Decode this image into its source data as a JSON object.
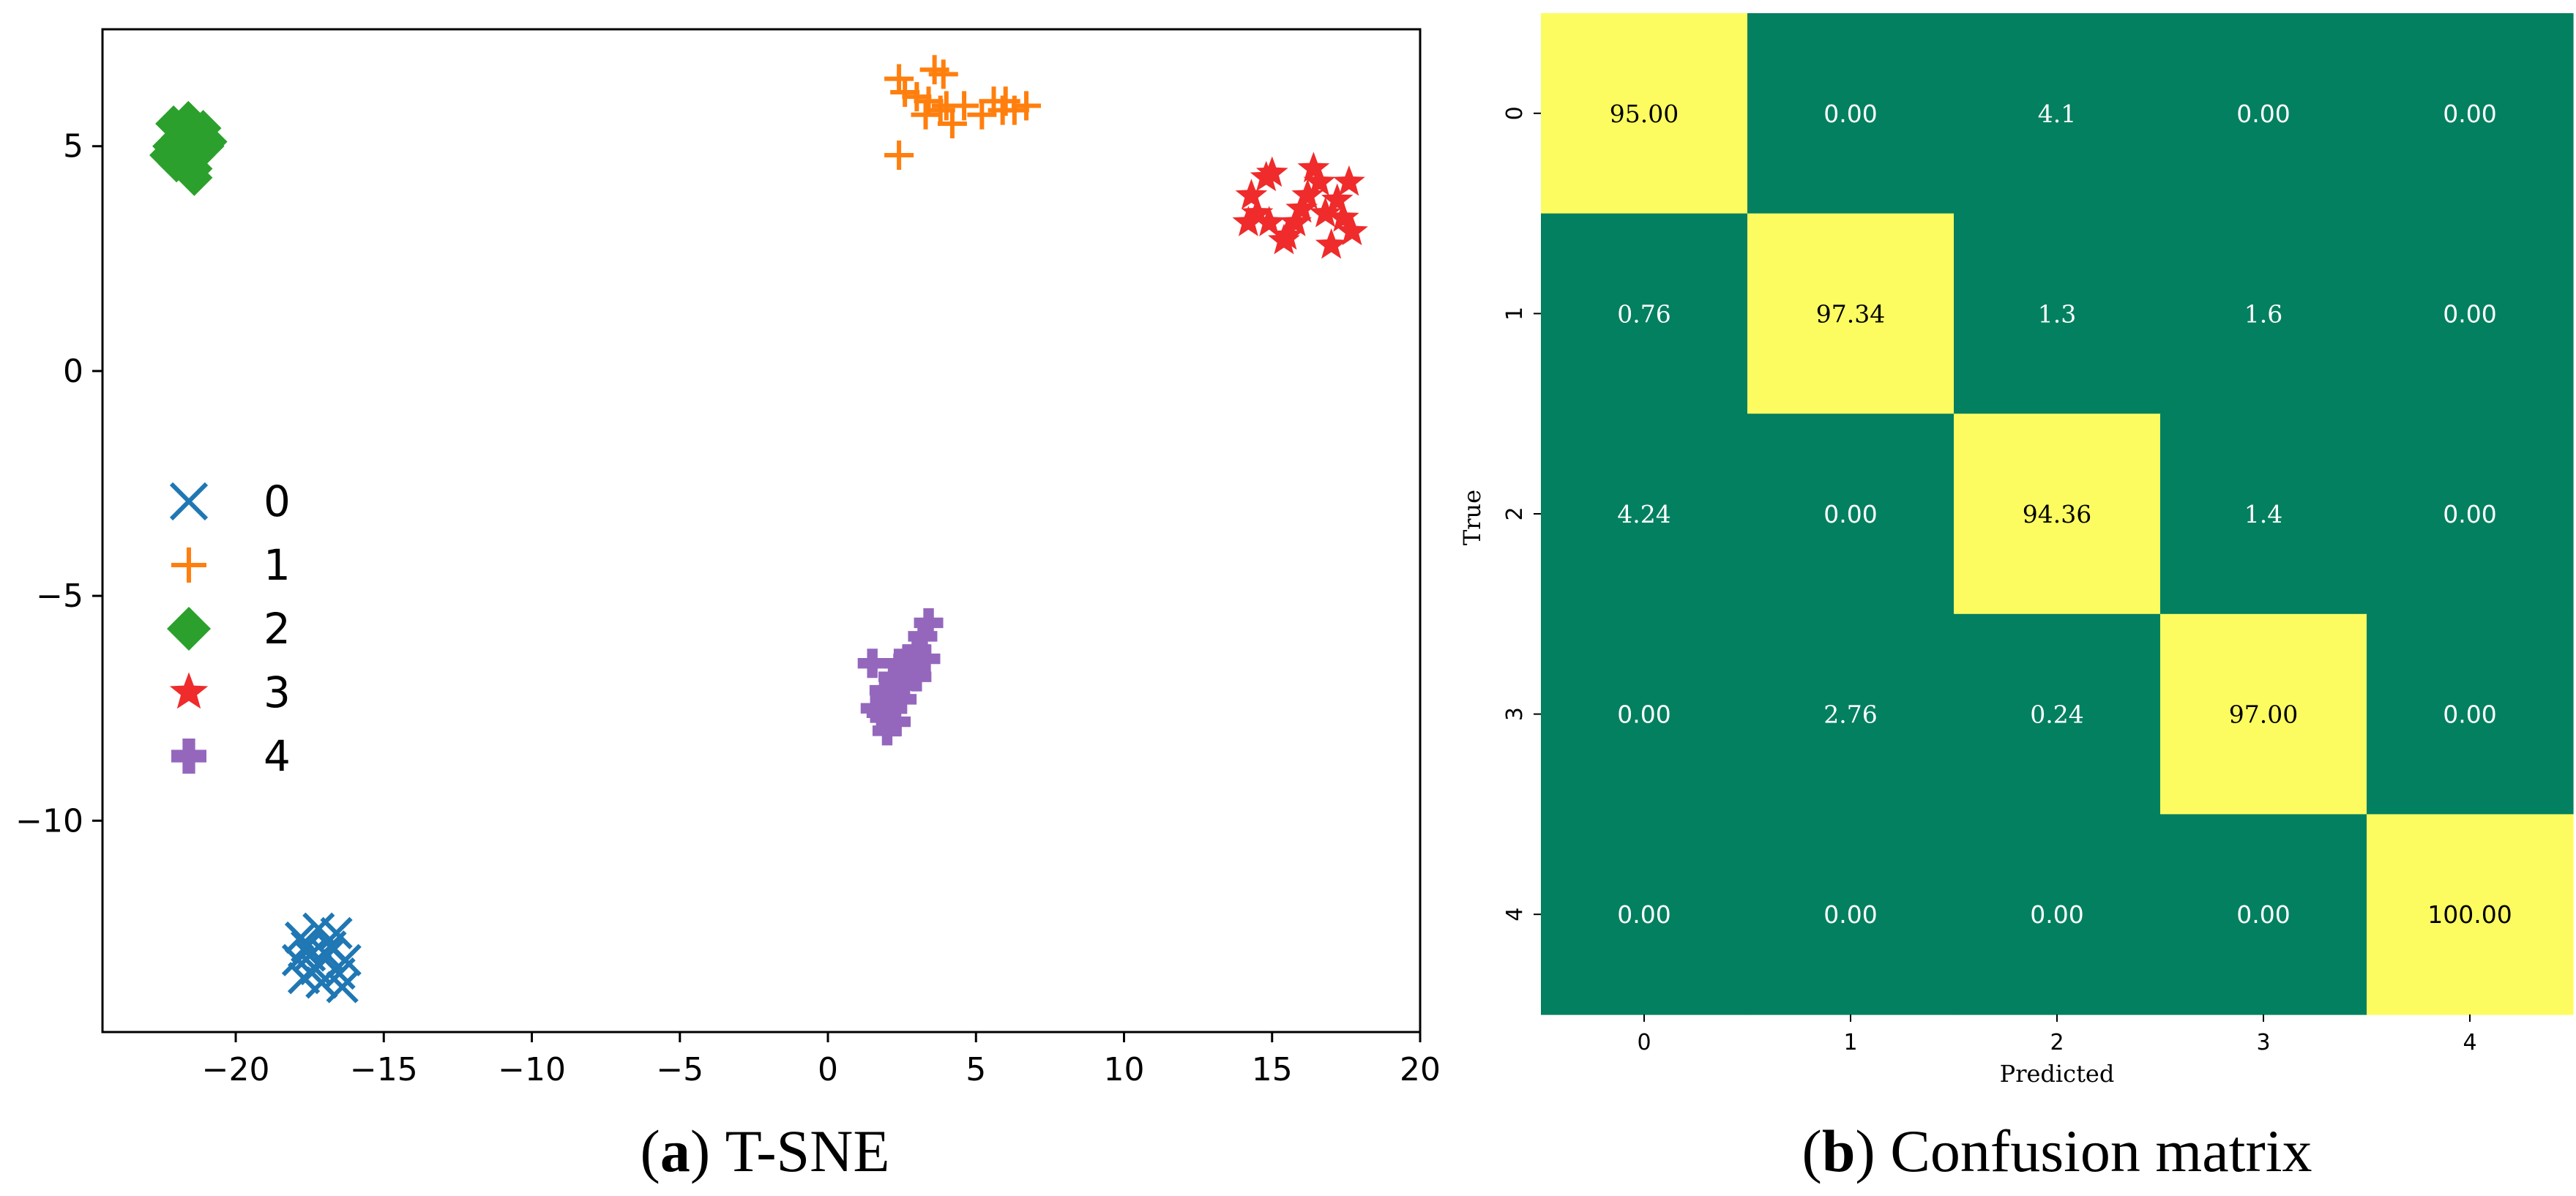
{
  "colors": {
    "c0": "#1f77b4",
    "c1": "#ff7f0e",
    "c2": "#2ca02c",
    "c3": "#ef2b2b",
    "c4": "#9467bd",
    "cm_high": "#fcfc61",
    "cm_low": "#028060"
  },
  "chart_data": [
    {
      "type": "scatter",
      "title": "",
      "xlim": [
        -24.5,
        20
      ],
      "ylim": [
        -14.7,
        7.6
      ],
      "xticks": [
        "−20",
        "−15",
        "−10",
        "−5",
        "0",
        "5",
        "10",
        "15",
        "20"
      ],
      "xtick_values": [
        -20,
        -15,
        -10,
        -5,
        0,
        5,
        10,
        15,
        20
      ],
      "yticks": [
        "5",
        "0",
        "−5",
        "−10"
      ],
      "ytick_values": [
        5,
        0,
        -5,
        -10
      ],
      "legend": {
        "placement": "center-left",
        "entries": [
          "0",
          "1",
          "2",
          "3",
          "4"
        ]
      },
      "series": [
        {
          "name": "0",
          "marker": "x",
          "color_key": "c0",
          "center": [
            -17.0,
            -13.1
          ],
          "spread": [
            0.9,
            0.6
          ],
          "points": [
            [
              -17.8,
              -12.6
            ],
            [
              -17.2,
              -12.4
            ],
            [
              -16.6,
              -12.5
            ],
            [
              -17.5,
              -13.0
            ],
            [
              -16.9,
              -13.0
            ],
            [
              -16.3,
              -13.1
            ],
            [
              -17.7,
              -13.5
            ],
            [
              -17.1,
              -13.6
            ],
            [
              -16.5,
              -13.4
            ],
            [
              -17.9,
              -13.1
            ],
            [
              -16.8,
              -12.8
            ],
            [
              -17.3,
              -13.3
            ],
            [
              -16.4,
              -13.7
            ],
            [
              -17.6,
              -12.8
            ]
          ]
        },
        {
          "name": "1",
          "marker": "+",
          "color_key": "c1",
          "points": [
            [
              2.4,
              6.5
            ],
            [
              2.6,
              6.2
            ],
            [
              3.0,
              6.1
            ],
            [
              3.6,
              6.7
            ],
            [
              3.9,
              6.6
            ],
            [
              3.4,
              6.0
            ],
            [
              3.8,
              5.8
            ],
            [
              4.2,
              5.5
            ],
            [
              4.6,
              5.9
            ],
            [
              5.2,
              5.7
            ],
            [
              5.6,
              6.0
            ],
            [
              6.0,
              6.0
            ],
            [
              6.3,
              5.8
            ],
            [
              6.7,
              5.9
            ],
            [
              4.0,
              5.9
            ],
            [
              2.4,
              4.8
            ],
            [
              3.3,
              5.7
            ],
            [
              5.9,
              5.8
            ]
          ]
        },
        {
          "name": "2",
          "marker": "D",
          "color_key": "c2",
          "points": [
            [
              -22.1,
              5.5
            ],
            [
              -21.6,
              5.6
            ],
            [
              -21.1,
              5.4
            ],
            [
              -22.2,
              5.0
            ],
            [
              -21.7,
              4.9
            ],
            [
              -21.0,
              5.0
            ],
            [
              -22.0,
              4.6
            ],
            [
              -21.4,
              4.5
            ],
            [
              -21.9,
              5.2
            ],
            [
              -21.5,
              5.2
            ],
            [
              -21.3,
              4.8
            ],
            [
              -22.3,
              4.8
            ],
            [
              -21.4,
              4.3
            ],
            [
              -20.9,
              5.1
            ]
          ]
        },
        {
          "name": "3",
          "marker": "*",
          "color_key": "c3",
          "points": [
            [
              14.3,
              3.9
            ],
            [
              14.8,
              4.3
            ],
            [
              15.0,
              4.4
            ],
            [
              14.5,
              3.5
            ],
            [
              14.9,
              3.3
            ],
            [
              15.5,
              3.0
            ],
            [
              15.8,
              3.3
            ],
            [
              16.0,
              3.6
            ],
            [
              16.4,
              4.5
            ],
            [
              16.6,
              4.2
            ],
            [
              16.8,
              3.5
            ],
            [
              17.2,
              3.8
            ],
            [
              17.4,
              3.4
            ],
            [
              17.0,
              2.8
            ],
            [
              17.7,
              3.1
            ],
            [
              17.6,
              4.2
            ],
            [
              14.2,
              3.3
            ],
            [
              15.4,
              2.9
            ],
            [
              16.2,
              3.9
            ]
          ]
        },
        {
          "name": "4",
          "marker": "P",
          "color_key": "c4",
          "points": [
            [
              3.4,
              -5.6
            ],
            [
              3.2,
              -5.9
            ],
            [
              3.0,
              -6.2
            ],
            [
              2.7,
              -6.4
            ],
            [
              2.4,
              -6.5
            ],
            [
              2.2,
              -6.8
            ],
            [
              2.6,
              -7.0
            ],
            [
              3.0,
              -6.8
            ],
            [
              2.5,
              -7.3
            ],
            [
              2.1,
              -7.4
            ],
            [
              1.8,
              -7.6
            ],
            [
              2.3,
              -7.8
            ],
            [
              2.0,
              -8.0
            ],
            [
              1.6,
              -7.5
            ],
            [
              1.9,
              -7.1
            ],
            [
              2.9,
              -6.6
            ],
            [
              3.3,
              -6.4
            ],
            [
              1.5,
              -6.5
            ]
          ]
        }
      ]
    },
    {
      "type": "heatmap",
      "title": "",
      "xlabel": "Predicted",
      "ylabel": "True",
      "x_categories": [
        "0",
        "1",
        "2",
        "3",
        "4"
      ],
      "y_categories": [
        "0",
        "1",
        "2",
        "3",
        "4"
      ],
      "cells": [
        [
          "95.00",
          "0.00",
          "4.1",
          "0.00",
          "0.00"
        ],
        [
          "0.76",
          "97.34",
          "1.3",
          "1.6",
          "0.00"
        ],
        [
          "4.24",
          "0.00",
          "94.36",
          "1.4",
          "0.00"
        ],
        [
          "0.00",
          "2.76",
          "0.24",
          "97.00",
          "0.00"
        ],
        [
          "0.00",
          "0.00",
          "0.00",
          "0.00",
          "100.00"
        ]
      ],
      "cell_font": [
        [
          "serif",
          "sans",
          "serif",
          "sans",
          "sans"
        ],
        [
          "serif",
          "serif",
          "serif",
          "serif",
          "sans"
        ],
        [
          "serif",
          "sans",
          "serif",
          "serif",
          "sans"
        ],
        [
          "sans",
          "serif",
          "serif",
          "serif",
          "sans"
        ],
        [
          "sans",
          "sans",
          "sans",
          "sans",
          "sans"
        ]
      ]
    }
  ],
  "captions": {
    "a_label": "a",
    "a_text": "T-SNE",
    "b_label": "b",
    "b_text": "Confusion matrix"
  }
}
